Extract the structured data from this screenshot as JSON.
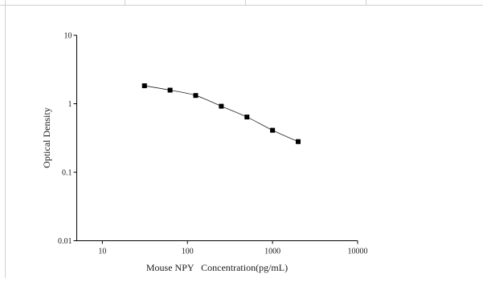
{
  "chart_data": {
    "type": "scatter",
    "title": "",
    "xlabel": "Mouse NPY   Concentration(pg/mL)",
    "ylabel": "Optical Density",
    "x_scale": "log",
    "y_scale": "log",
    "xlim": [
      5,
      10000
    ],
    "ylim": [
      0.01,
      10
    ],
    "x_ticks": [
      {
        "value": 10,
        "label": "10"
      },
      {
        "value": 100,
        "label": "100"
      },
      {
        "value": 1000,
        "label": "1000"
      },
      {
        "value": 10000,
        "label": "10000"
      }
    ],
    "y_ticks": [
      {
        "value": 0.01,
        "label": "0.01"
      },
      {
        "value": 0.1,
        "label": "0.1"
      },
      {
        "value": 1,
        "label": "1"
      },
      {
        "value": 10,
        "label": "10"
      }
    ],
    "grid": false,
    "fit_line": true,
    "series": [
      {
        "marker": "square",
        "color": "#000000",
        "points": [
          {
            "x": 31.25,
            "y": 1.83
          },
          {
            "x": 62.5,
            "y": 1.58
          },
          {
            "x": 125,
            "y": 1.32
          },
          {
            "x": 250,
            "y": 0.92
          },
          {
            "x": 500,
            "y": 0.64
          },
          {
            "x": 1000,
            "y": 0.41
          },
          {
            "x": 2000,
            "y": 0.28
          }
        ]
      }
    ]
  }
}
